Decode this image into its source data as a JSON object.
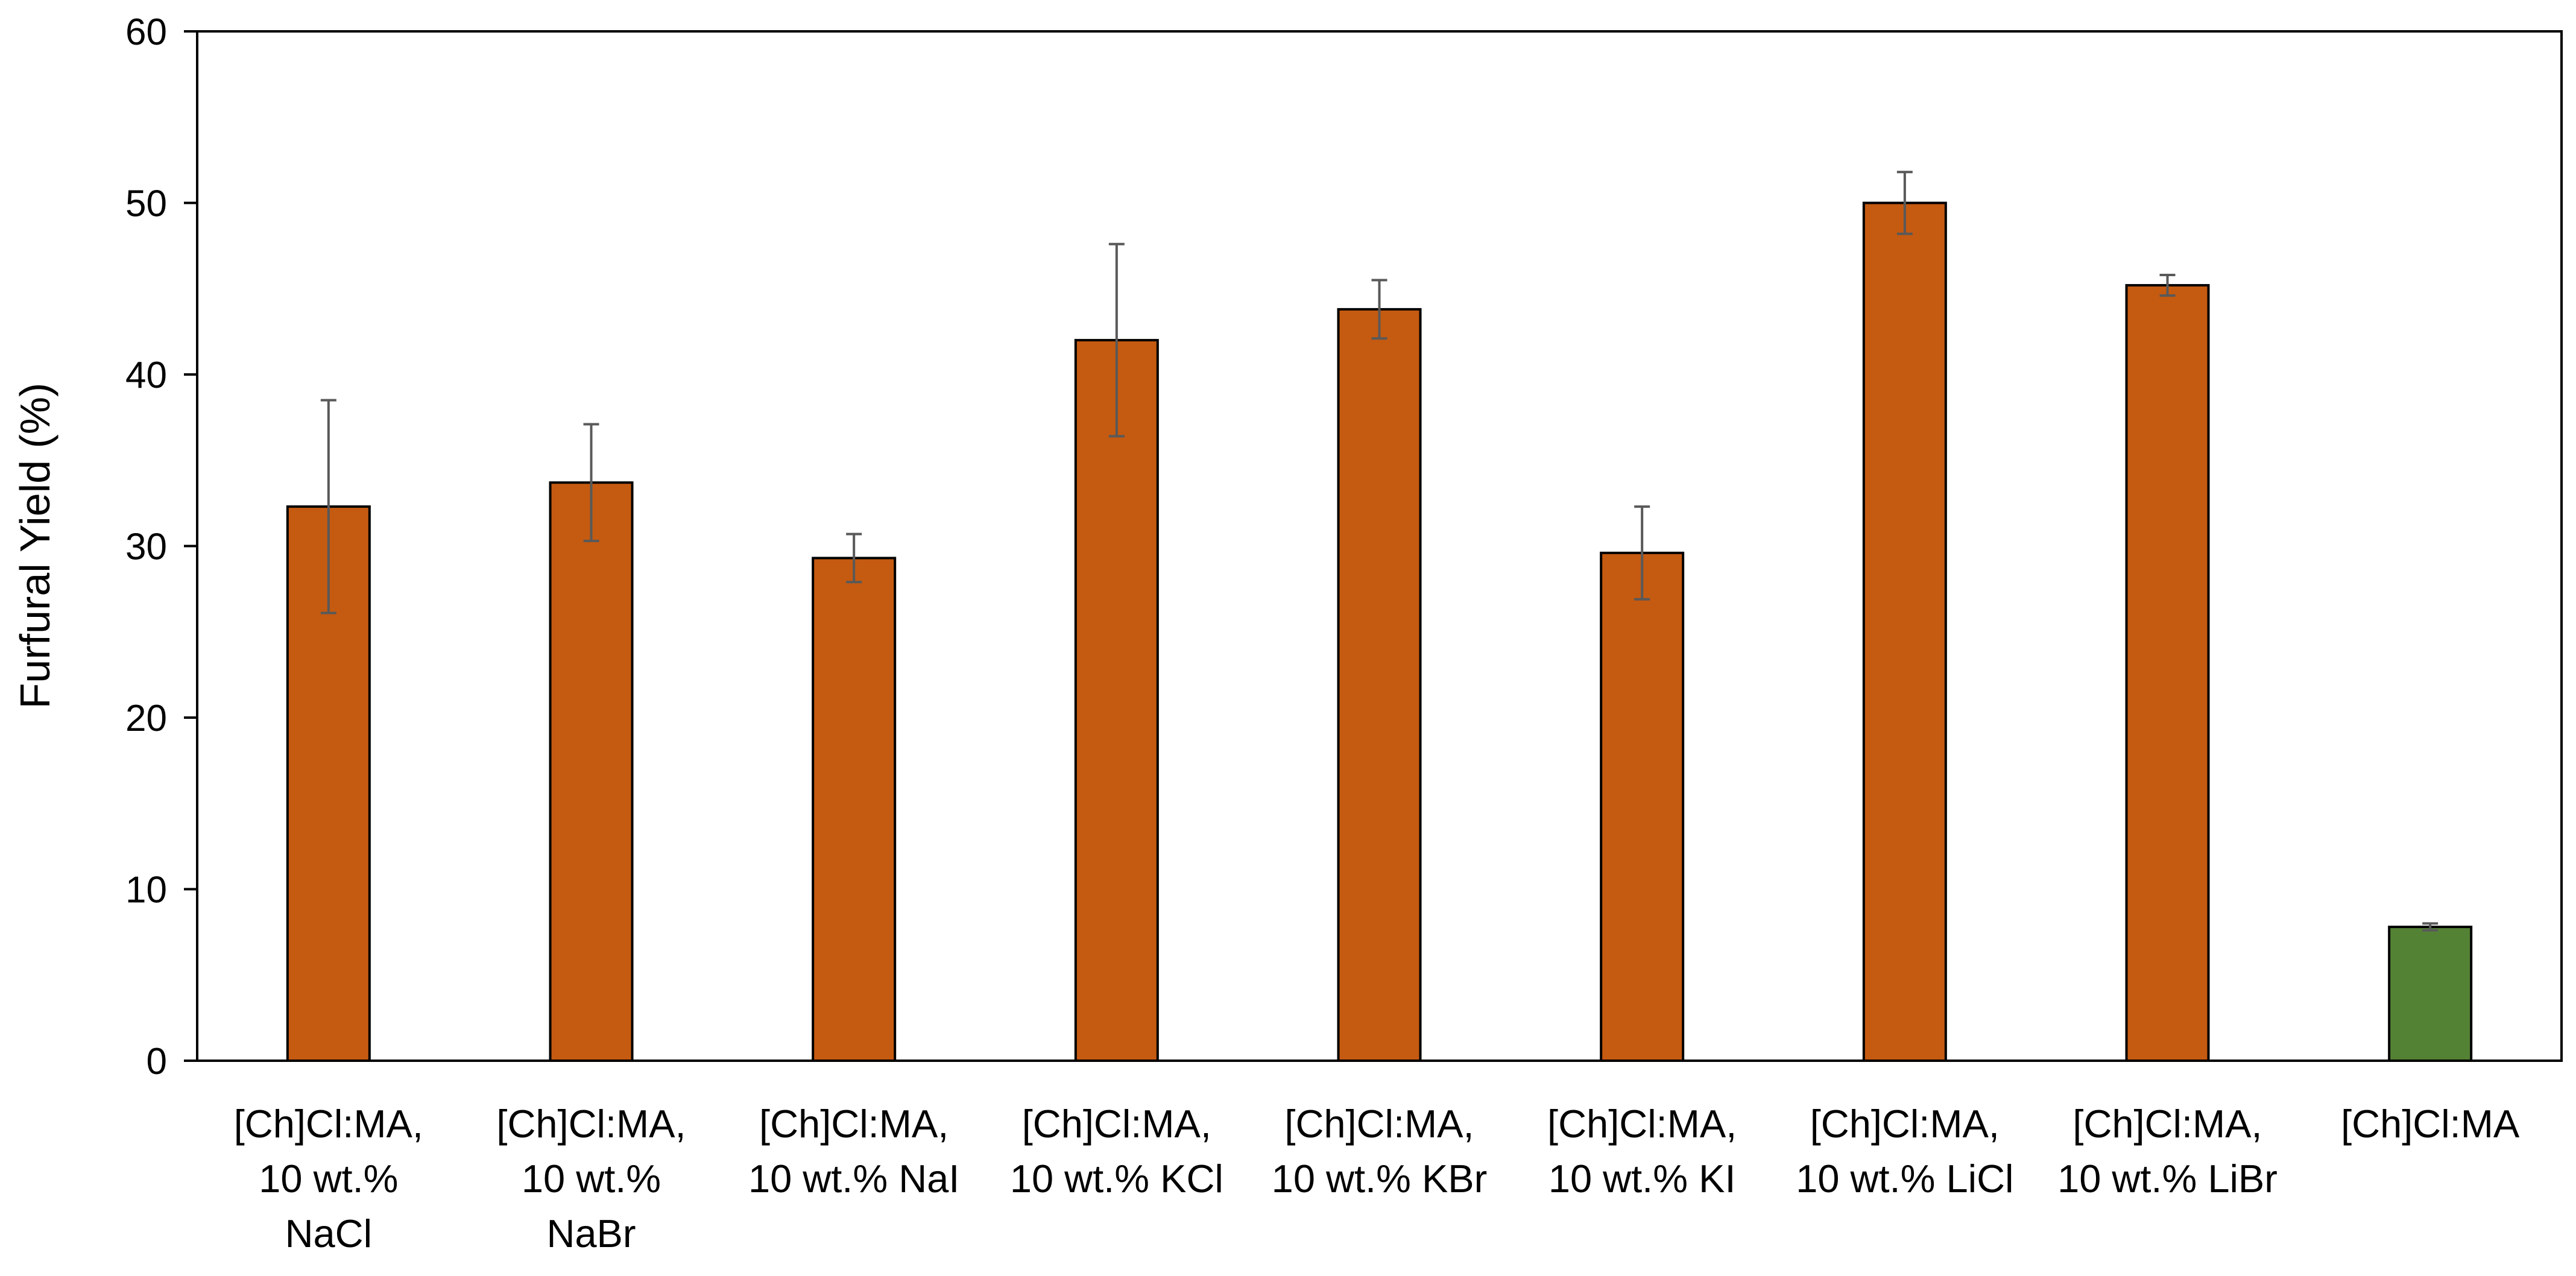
{
  "chart_data": {
    "type": "bar",
    "title": "",
    "xlabel": "",
    "ylabel": "Furfural Yield (%)",
    "ylim": [
      0,
      60
    ],
    "yticks": [
      0,
      10,
      20,
      30,
      40,
      50,
      60
    ],
    "grid": false,
    "legend": "none",
    "categories": [
      [
        "[Ch]Cl:MA,",
        "10 wt.%",
        "NaCl"
      ],
      [
        "[Ch]Cl:MA,",
        "10 wt.%",
        "NaBr"
      ],
      [
        "[Ch]Cl:MA,",
        "10 wt.% NaI"
      ],
      [
        "[Ch]Cl:MA,",
        "10 wt.% KCl"
      ],
      [
        "[Ch]Cl:MA,",
        "10 wt.% KBr"
      ],
      [
        "[Ch]Cl:MA,",
        "10 wt.% KI"
      ],
      [
        "[Ch]Cl:MA,",
        "10 wt.% LiCl"
      ],
      [
        "[Ch]Cl:MA,",
        "10 wt.% LiBr"
      ],
      [
        "[Ch]Cl:MA"
      ]
    ],
    "values": [
      32.3,
      33.7,
      29.3,
      42.0,
      43.8,
      29.6,
      50.0,
      45.2,
      7.8
    ],
    "errors": [
      6.2,
      3.4,
      1.4,
      5.6,
      1.7,
      2.7,
      1.8,
      0.6,
      0.2
    ],
    "colors": [
      "#C55A11",
      "#C55A11",
      "#C55A11",
      "#C55A11",
      "#C55A11",
      "#C55A11",
      "#C55A11",
      "#C55A11",
      "#548235"
    ],
    "bar_stroke": "#000000",
    "error_color": "#595959"
  }
}
